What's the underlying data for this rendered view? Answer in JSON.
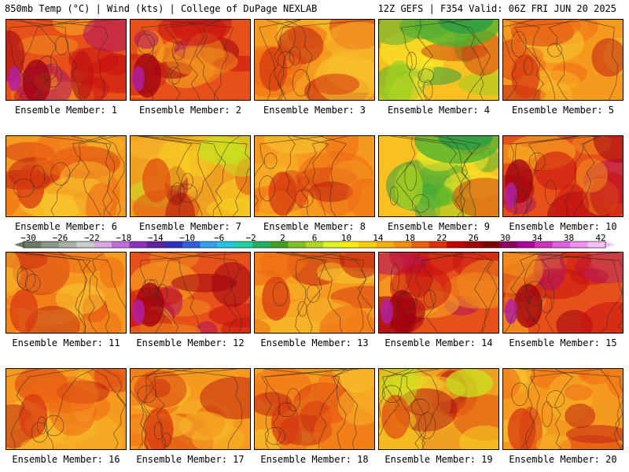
{
  "header": {
    "left": "850mb Temp (°C) | Wind (kts) | College of DuPage NEXLAB",
    "right": "12Z GEFS | F354 Valid: 06Z FRI JUN 20 2025"
  },
  "colorbar": {
    "labels": [
      "−30",
      "−26",
      "−22",
      "−18",
      "−14",
      "−10",
      "−6",
      "−2",
      "2",
      "6",
      "10",
      "14",
      "18",
      "22",
      "26",
      "30",
      "34",
      "38",
      "42"
    ],
    "colors": [
      "#6b7a6b",
      "#8a968a",
      "#a8b2a8",
      "#c8cec8",
      "#d8a8e0",
      "#c070d8",
      "#9030c0",
      "#6020a0",
      "#3030c0",
      "#3060e0",
      "#30a0f0",
      "#20c8e0",
      "#20d0a0",
      "#20b060",
      "#40a020",
      "#80c020",
      "#b0d820",
      "#e0f020",
      "#f8f000",
      "#f8d000",
      "#f8b000",
      "#f89000",
      "#f06000",
      "#e03000",
      "#c80000",
      "#a00000",
      "#800000",
      "#900060",
      "#b000a0",
      "#d030c0",
      "#e060e0",
      "#f090f0",
      "#f8c0f8"
    ]
  },
  "members": [
    {
      "label": "Ensemble Member: 1",
      "tint": "hot"
    },
    {
      "label": "Ensemble Member: 2",
      "tint": "hot"
    },
    {
      "label": "Ensemble Member: 3",
      "tint": "warm"
    },
    {
      "label": "Ensemble Member: 4",
      "tint": "cool"
    },
    {
      "label": "Ensemble Member: 5",
      "tint": "warm"
    },
    {
      "label": "Ensemble Member: 6",
      "tint": "warm"
    },
    {
      "label": "Ensemble Member: 7",
      "tint": "mild"
    },
    {
      "label": "Ensemble Member: 8",
      "tint": "warm"
    },
    {
      "label": "Ensemble Member: 9",
      "tint": "cool"
    },
    {
      "label": "Ensemble Member: 10",
      "tint": "hot"
    },
    {
      "label": "Ensemble Member: 11",
      "tint": "warm"
    },
    {
      "label": "Ensemble Member: 12",
      "tint": "hot"
    },
    {
      "label": "Ensemble Member: 13",
      "tint": "warm"
    },
    {
      "label": "Ensemble Member: 14",
      "tint": "hot"
    },
    {
      "label": "Ensemble Member: 15",
      "tint": "hot"
    },
    {
      "label": "Ensemble Member: 16",
      "tint": "warm"
    },
    {
      "label": "Ensemble Member: 17",
      "tint": "warm"
    },
    {
      "label": "Ensemble Member: 18",
      "tint": "warm"
    },
    {
      "label": "Ensemble Member: 19",
      "tint": "mild"
    },
    {
      "label": "Ensemble Member: 20",
      "tint": "warm"
    }
  ]
}
